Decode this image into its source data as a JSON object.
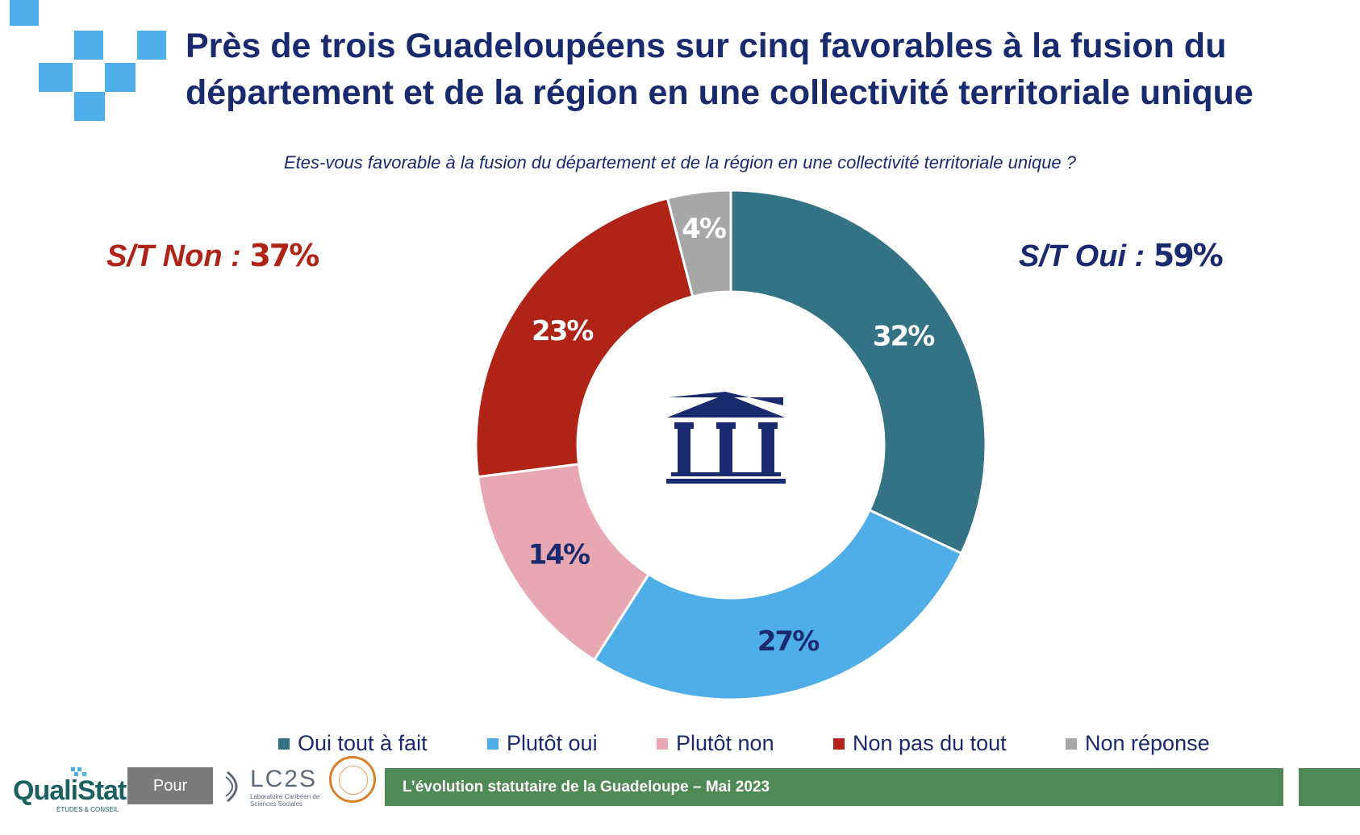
{
  "title_line1": "Près de trois Guadeloupéens sur cinq favorables à la fusion du",
  "title_line2": "département et de la région en une collectivité territoriale unique",
  "question": "Etes-vous favorable à la fusion du département et de la région en une collectivité territoriale unique ?",
  "subtotal_non": {
    "label": "S/T Non : ",
    "value": "37%"
  },
  "subtotal_oui": {
    "label": "S/T Oui : ",
    "value": "59%"
  },
  "center_icon": "building-columns-icon",
  "colors": {
    "title": "#1a2a6e",
    "oui_tout_a_fait": "#347385",
    "plutot_oui": "#4faee8",
    "plutot_non": "#e8a8b2",
    "non_pas_du_tout": "#b02418",
    "non_reponse": "#a7a7a7",
    "accent_squares": "#4faee8",
    "banner": "#4f8a56"
  },
  "chart_data": {
    "type": "pie",
    "donut": true,
    "categories": [
      "Oui tout à fait",
      "Plutôt oui",
      "Plutôt non",
      "Non pas du tout",
      "Non réponse"
    ],
    "values": [
      32,
      27,
      14,
      23,
      4
    ],
    "data_labels": [
      "32%",
      "27%",
      "14%",
      "23%",
      "4%"
    ],
    "label_colors": [
      "#ffffff",
      "#1a2a6e",
      "#1a2a6e",
      "#ffffff",
      "#ffffff"
    ],
    "slice_colors": [
      "#347385",
      "#4faee8",
      "#e8a8b2",
      "#b02418",
      "#a7a7a7"
    ],
    "legend_placement": "bottom"
  },
  "legend": [
    {
      "label": "Oui tout à fait",
      "color": "#347385"
    },
    {
      "label": "Plutôt oui",
      "color": "#4faee8"
    },
    {
      "label": "Plutôt non",
      "color": "#e8a8b2"
    },
    {
      "label": "Non pas du tout",
      "color": "#b02418"
    },
    {
      "label": "Non réponse",
      "color": "#a7a7a7"
    }
  ],
  "footer": {
    "logo_qualistat": "QualiStat",
    "logo_qualistat_sub": "ÉTUDES & CONSEIL",
    "pour": "Pour",
    "lc2s_name": "LC2S",
    "lc2s_sub": "Laboratoire Caribéen de Sciences Sociales",
    "banner_text": "L’évolution statutaire de la Guadeloupe – Mai 2023"
  }
}
